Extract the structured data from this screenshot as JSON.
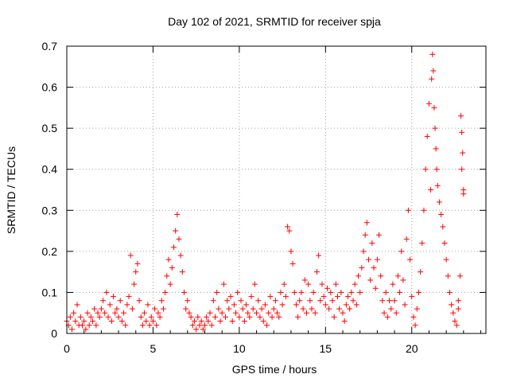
{
  "chart_data": {
    "type": "scatter",
    "title": "Day 102 of 2021, SRMTID for receiver spja",
    "xlabel": "GPS time / hours",
    "ylabel": "SRMTID / TECUs",
    "xlim": [
      0,
      24.3
    ],
    "ylim": [
      0,
      0.7
    ],
    "xticks": [
      0,
      5,
      10,
      15,
      20
    ],
    "xtick_labels": [
      "0",
      "5",
      "10",
      "15",
      "20"
    ],
    "yticks": [
      0,
      0.1,
      0.2,
      0.3,
      0.4,
      0.5,
      0.6,
      0.7
    ],
    "ytick_labels": [
      "0",
      "0.1",
      "0.2",
      "0.3",
      "0.4",
      "0.5",
      "0.6",
      "0.7"
    ],
    "grid": true,
    "marker": "+",
    "color": "#ff0000",
    "series": [
      {
        "name": "SRMTID",
        "points": [
          [
            0.0,
            0.03
          ],
          [
            0.1,
            0.02
          ],
          [
            0.2,
            0.04
          ],
          [
            0.3,
            0.01
          ],
          [
            0.4,
            0.05
          ],
          [
            0.5,
            0.03
          ],
          [
            0.6,
            0.07
          ],
          [
            0.7,
            0.02
          ],
          [
            0.8,
            0.04
          ],
          [
            0.9,
            0.02
          ],
          [
            1.0,
            0.03
          ],
          [
            1.1,
            0.01
          ],
          [
            1.2,
            0.05
          ],
          [
            1.3,
            0.02
          ],
          [
            1.4,
            0.04
          ],
          [
            1.5,
            0.03
          ],
          [
            1.6,
            0.06
          ],
          [
            1.7,
            0.02
          ],
          [
            1.8,
            0.05
          ],
          [
            1.9,
            0.04
          ],
          [
            2.0,
            0.06
          ],
          [
            2.1,
            0.08
          ],
          [
            2.2,
            0.05
          ],
          [
            2.3,
            0.1
          ],
          [
            2.4,
            0.04
          ],
          [
            2.5,
            0.07
          ],
          [
            2.6,
            0.03
          ],
          [
            2.7,
            0.09
          ],
          [
            2.8,
            0.05
          ],
          [
            2.9,
            0.06
          ],
          [
            3.0,
            0.04
          ],
          [
            3.1,
            0.08
          ],
          [
            3.2,
            0.03
          ],
          [
            3.3,
            0.05
          ],
          [
            3.4,
            0.02
          ],
          [
            3.5,
            0.07
          ],
          [
            3.6,
            0.09
          ],
          [
            3.7,
            0.19
          ],
          [
            3.8,
            0.06
          ],
          [
            3.9,
            0.12
          ],
          [
            4.0,
            0.15
          ],
          [
            4.1,
            0.17
          ],
          [
            4.2,
            0.08
          ],
          [
            4.3,
            0.04
          ],
          [
            4.4,
            0.02
          ],
          [
            4.5,
            0.05
          ],
          [
            4.6,
            0.03
          ],
          [
            4.7,
            0.07
          ],
          [
            4.8,
            0.02
          ],
          [
            4.9,
            0.04
          ],
          [
            5.0,
            0.03
          ],
          [
            5.1,
            0.06
          ],
          [
            5.2,
            0.02
          ],
          [
            5.3,
            0.05
          ],
          [
            5.4,
            0.04
          ],
          [
            5.5,
            0.08
          ],
          [
            5.6,
            0.06
          ],
          [
            5.7,
            0.1
          ],
          [
            5.8,
            0.14
          ],
          [
            5.9,
            0.18
          ],
          [
            6.0,
            0.12
          ],
          [
            6.1,
            0.16
          ],
          [
            6.2,
            0.21
          ],
          [
            6.3,
            0.25
          ],
          [
            6.4,
            0.29
          ],
          [
            6.5,
            0.23
          ],
          [
            6.6,
            0.19
          ],
          [
            6.7,
            0.15
          ],
          [
            6.8,
            0.1
          ],
          [
            6.9,
            0.06
          ],
          [
            7.0,
            0.08
          ],
          [
            7.1,
            0.05
          ],
          [
            7.2,
            0.04
          ],
          [
            7.3,
            0.02
          ],
          [
            7.4,
            0.03
          ],
          [
            7.5,
            0.01
          ],
          [
            7.6,
            0.04
          ],
          [
            7.7,
            0.02
          ],
          [
            7.8,
            0.03
          ],
          [
            7.9,
            0.01
          ],
          [
            8.0,
            0.02
          ],
          [
            8.1,
            0.04
          ],
          [
            8.2,
            0.03
          ],
          [
            8.3,
            0.05
          ],
          [
            8.4,
            0.02
          ],
          [
            8.5,
            0.08
          ],
          [
            8.6,
            0.04
          ],
          [
            8.7,
            0.1
          ],
          [
            8.8,
            0.06
          ],
          [
            8.9,
            0.03
          ],
          [
            9.0,
            0.05
          ],
          [
            9.1,
            0.12
          ],
          [
            9.2,
            0.04
          ],
          [
            9.3,
            0.08
          ],
          [
            9.4,
            0.06
          ],
          [
            9.5,
            0.09
          ],
          [
            9.6,
            0.03
          ],
          [
            9.7,
            0.07
          ],
          [
            9.8,
            0.05
          ],
          [
            9.9,
            0.1
          ],
          [
            10.0,
            0.04
          ],
          [
            10.1,
            0.08
          ],
          [
            10.2,
            0.06
          ],
          [
            10.3,
            0.03
          ],
          [
            10.4,
            0.07
          ],
          [
            10.5,
            0.05
          ],
          [
            10.6,
            0.04
          ],
          [
            10.7,
            0.09
          ],
          [
            10.8,
            0.06
          ],
          [
            10.9,
            0.12
          ],
          [
            11.0,
            0.05
          ],
          [
            11.1,
            0.08
          ],
          [
            11.2,
            0.04
          ],
          [
            11.3,
            0.06
          ],
          [
            11.4,
            0.03
          ],
          [
            11.5,
            0.07
          ],
          [
            11.6,
            0.02
          ],
          [
            11.7,
            0.05
          ],
          [
            11.8,
            0.09
          ],
          [
            11.9,
            0.04
          ],
          [
            12.0,
            0.06
          ],
          [
            12.1,
            0.08
          ],
          [
            12.2,
            0.05
          ],
          [
            12.3,
            0.04
          ],
          [
            12.4,
            0.1
          ],
          [
            12.5,
            0.07
          ],
          [
            12.6,
            0.12
          ],
          [
            12.7,
            0.09
          ],
          [
            12.8,
            0.26
          ],
          [
            12.9,
            0.25
          ],
          [
            13.0,
            0.2
          ],
          [
            13.1,
            0.17
          ],
          [
            13.2,
            0.1
          ],
          [
            13.3,
            0.07
          ],
          [
            13.4,
            0.04
          ],
          [
            13.5,
            0.08
          ],
          [
            13.6,
            0.1
          ],
          [
            13.7,
            0.06
          ],
          [
            13.8,
            0.13
          ],
          [
            13.9,
            0.05
          ],
          [
            14.0,
            0.12
          ],
          [
            14.1,
            0.08
          ],
          [
            14.2,
            0.06
          ],
          [
            14.3,
            0.1
          ],
          [
            14.4,
            0.05
          ],
          [
            14.5,
            0.15
          ],
          [
            14.6,
            0.19
          ],
          [
            14.7,
            0.08
          ],
          [
            14.8,
            0.12
          ],
          [
            14.9,
            0.09
          ],
          [
            15.0,
            0.07
          ],
          [
            15.1,
            0.11
          ],
          [
            15.2,
            0.06
          ],
          [
            15.3,
            0.1
          ],
          [
            15.4,
            0.08
          ],
          [
            15.5,
            0.04
          ],
          [
            15.6,
            0.12
          ],
          [
            15.7,
            0.09
          ],
          [
            15.8,
            0.06
          ],
          [
            15.9,
            0.1
          ],
          [
            16.0,
            0.05
          ],
          [
            16.1,
            0.03
          ],
          [
            16.2,
            0.07
          ],
          [
            16.3,
            0.09
          ],
          [
            16.4,
            0.06
          ],
          [
            16.5,
            0.1
          ],
          [
            16.6,
            0.08
          ],
          [
            16.7,
            0.12
          ],
          [
            16.8,
            0.07
          ],
          [
            16.9,
            0.14
          ],
          [
            17.0,
            0.1
          ],
          [
            17.1,
            0.16
          ],
          [
            17.2,
            0.2
          ],
          [
            17.3,
            0.24
          ],
          [
            17.4,
            0.27
          ],
          [
            17.5,
            0.18
          ],
          [
            17.6,
            0.13
          ],
          [
            17.7,
            0.22
          ],
          [
            17.8,
            0.16
          ],
          [
            17.9,
            0.11
          ],
          [
            18.0,
            0.18
          ],
          [
            18.1,
            0.24
          ],
          [
            18.2,
            0.14
          ],
          [
            18.3,
            0.08
          ],
          [
            18.4,
            0.05
          ],
          [
            18.5,
            0.1
          ],
          [
            18.6,
            0.04
          ],
          [
            18.7,
            0.08
          ],
          [
            18.8,
            0.06
          ],
          [
            18.9,
            0.12
          ],
          [
            19.0,
            0.08
          ],
          [
            19.1,
            0.05
          ],
          [
            19.2,
            0.14
          ],
          [
            19.3,
            0.1
          ],
          [
            19.4,
            0.2
          ],
          [
            19.5,
            0.13
          ],
          [
            19.6,
            0.07
          ],
          [
            19.7,
            0.23
          ],
          [
            19.8,
            0.3
          ],
          [
            19.9,
            0.18
          ],
          [
            20.0,
            0.09
          ],
          [
            20.1,
            0.04
          ],
          [
            20.2,
            0.02
          ],
          [
            20.3,
            0.06
          ],
          [
            20.4,
            0.1
          ],
          [
            20.5,
            0.15
          ],
          [
            20.6,
            0.22
          ],
          [
            20.7,
            0.3
          ],
          [
            20.8,
            0.4
          ],
          [
            20.9,
            0.48
          ],
          [
            21.0,
            0.56
          ],
          [
            21.1,
            0.35
          ],
          [
            21.15,
            0.62
          ],
          [
            21.2,
            0.68
          ],
          [
            21.25,
            0.64
          ],
          [
            21.3,
            0.55
          ],
          [
            21.35,
            0.5
          ],
          [
            21.4,
            0.45
          ],
          [
            21.45,
            0.4
          ],
          [
            21.5,
            0.36
          ],
          [
            21.6,
            0.32
          ],
          [
            21.7,
            0.29
          ],
          [
            21.8,
            0.26
          ],
          [
            21.9,
            0.22
          ],
          [
            22.0,
            0.18
          ],
          [
            22.1,
            0.14
          ],
          [
            22.2,
            0.1
          ],
          [
            22.3,
            0.07
          ],
          [
            22.4,
            0.05
          ],
          [
            22.5,
            0.03
          ],
          [
            22.6,
            0.02
          ],
          [
            22.7,
            0.06
          ],
          [
            22.8,
            0.14
          ],
          [
            22.85,
            0.53
          ],
          [
            22.9,
            0.49
          ],
          [
            22.95,
            0.44
          ],
          [
            23.0,
            0.35
          ],
          [
            22.9,
            0.4
          ],
          [
            23.0,
            0.34
          ],
          [
            22.7,
            0.08
          ]
        ]
      }
    ]
  }
}
